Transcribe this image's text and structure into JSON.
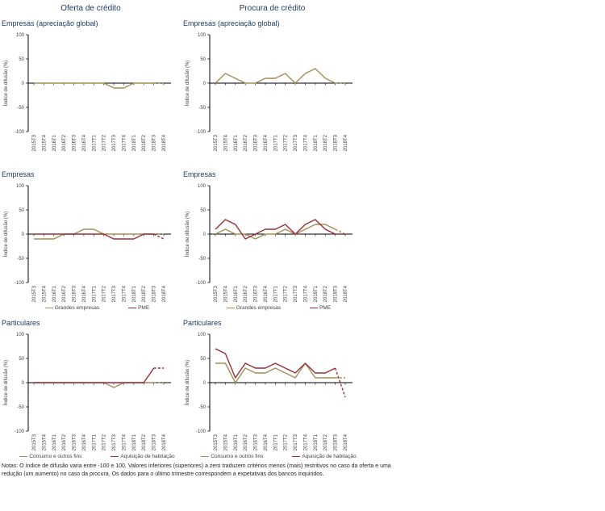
{
  "header": {
    "left_column": "Oferta de crédito",
    "right_column": "Procura de crédito"
  },
  "colors": {
    "navy": "#1e3c64",
    "olive": "#a58e55",
    "dark_red": "#9e2c38",
    "axis": "#000000",
    "tick_label": "#404040"
  },
  "chart_data": {
    "type": "line",
    "categories": [
      "2015T3",
      "2015T4",
      "2016T1",
      "2016T2",
      "2016T3",
      "2016T4",
      "2017T1",
      "2017T2",
      "2017T3",
      "2017T4",
      "2018T1",
      "2018T2",
      "2018T3",
      "2018T4"
    ],
    "ylabel": "Índice de difusão (%)",
    "ylim": [
      -100,
      100
    ],
    "yticks": [
      100,
      50,
      0,
      -50,
      -100
    ],
    "grid": false,
    "legend_position": "bottom",
    "charts": [
      {
        "column": "Oferta de crédito",
        "title": "Empresas (apreciação global)",
        "series": [
          {
            "color": "#a58e55",
            "values": [
              0,
              0,
              0,
              0,
              0,
              0,
              0,
              0,
              -10,
              -10,
              0,
              0,
              0,
              0
            ],
            "dashed_from_index": 12
          }
        ]
      },
      {
        "column": "Procura de crédito",
        "title": "Empresas (apreciação global)",
        "series": [
          {
            "color": "#a58e55",
            "values": [
              0,
              20,
              10,
              0,
              0,
              10,
              10,
              20,
              0,
              20,
              30,
              10,
              0,
              0
            ],
            "dashed_from_index": 12
          }
        ]
      },
      {
        "column": "Oferta de crédito",
        "title": "Empresas",
        "series": [
          {
            "name": "Grandes empresas",
            "color": "#a58e55",
            "values": [
              -10,
              -10,
              -10,
              0,
              0,
              10,
              10,
              0,
              0,
              0,
              0,
              0,
              0,
              0
            ],
            "dashed_from_index": 12
          },
          {
            "name": "PME",
            "color": "#9e2c38",
            "values": [
              0,
              0,
              0,
              0,
              0,
              0,
              0,
              0,
              -10,
              -10,
              -10,
              0,
              0,
              -10
            ],
            "dashed_from_index": 12
          }
        ]
      },
      {
        "column": "Procura de crédito",
        "title": "Empresas",
        "series": [
          {
            "name": "Grandes empresas",
            "color": "#a58e55",
            "values": [
              0,
              10,
              0,
              0,
              -10,
              0,
              0,
              10,
              0,
              10,
              20,
              20,
              10,
              0
            ],
            "dashed_from_index": 12
          },
          {
            "name": "PME",
            "color": "#9e2c38",
            "values": [
              10,
              30,
              20,
              -10,
              0,
              10,
              10,
              20,
              0,
              20,
              30,
              10,
              0,
              0
            ],
            "dashed_from_index": 12
          }
        ]
      },
      {
        "column": "Oferta de crédito",
        "title": "Particulares",
        "series": [
          {
            "name": "Consumo e outros fins",
            "color": "#a58e55",
            "values": [
              0,
              0,
              0,
              0,
              0,
              0,
              0,
              0,
              -10,
              0,
              0,
              0,
              0,
              0
            ],
            "dashed_from_index": 12
          },
          {
            "name": "Aquisição de habitação",
            "color": "#9e2c38",
            "values": [
              0,
              0,
              0,
              0,
              0,
              0,
              0,
              0,
              0,
              0,
              0,
              0,
              30,
              30
            ],
            "dashed_from_index": 12
          }
        ]
      },
      {
        "column": "Procura de crédito",
        "title": "Particulares",
        "series": [
          {
            "name": "Consumo e outros fins",
            "color": "#a58e55",
            "values": [
              40,
              40,
              0,
              30,
              20,
              20,
              30,
              20,
              10,
              40,
              10,
              10,
              10,
              10
            ],
            "dashed_from_index": 12
          },
          {
            "name": "Aquisição de habitação",
            "color": "#9e2c38",
            "values": [
              70,
              60,
              10,
              40,
              30,
              30,
              40,
              30,
              20,
              40,
              20,
              20,
              30,
              -30
            ],
            "dashed_from_index": 12
          }
        ]
      }
    ]
  },
  "notes": "Notas: O índice de difusão varia entre -100 e 100. Valores inferiores (superiores) a zero traduzem critérios menos (mais) restritivos no caso da oferta e uma redução (um aumento) no caso da procura. Os dados para o último trimestre correspondem a expetativas dos bancos inquiridos."
}
